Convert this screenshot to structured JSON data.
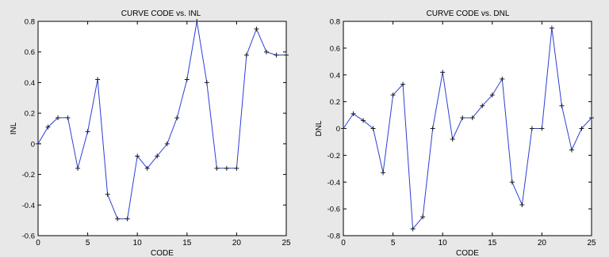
{
  "chart_data": [
    {
      "type": "line",
      "title": "CURVE CODE vs. INL",
      "xlabel": "CODE",
      "ylabel": "INL",
      "xlim": [
        0,
        25
      ],
      "ylim": [
        -0.6,
        0.8
      ],
      "xticks": [
        "0",
        "5",
        "10",
        "15",
        "20",
        "25"
      ],
      "yticks": [
        "-0.6",
        "-0.4",
        "-0.2",
        "0",
        "0.2",
        "0.4",
        "0.6",
        "0.8"
      ],
      "grid": false,
      "series": [
        {
          "color": "#2b3fd6",
          "marker": "plus",
          "x": [
            0,
            1,
            2,
            3,
            4,
            5,
            6,
            7,
            8,
            9,
            10,
            11,
            12,
            13,
            14,
            15,
            16,
            17,
            18,
            19,
            20,
            21,
            22,
            23,
            24,
            25
          ],
          "y": [
            0.0,
            0.11,
            0.17,
            0.17,
            -0.16,
            0.08,
            0.42,
            -0.33,
            -0.49,
            -0.49,
            -0.08,
            -0.16,
            -0.08,
            0.0,
            0.17,
            0.42,
            0.8,
            0.4,
            -0.16,
            -0.16,
            -0.16,
            0.58,
            0.75,
            0.6,
            0.58,
            0.58
          ]
        }
      ]
    },
    {
      "type": "line",
      "title": "CURVE CODE vs. DNL",
      "xlabel": "CODE",
      "ylabel": "DNL",
      "xlim": [
        0,
        25
      ],
      "ylim": [
        -0.8,
        0.8
      ],
      "xticks": [
        "0",
        "5",
        "10",
        "15",
        "20",
        "25"
      ],
      "yticks": [
        "-0.8",
        "-0.6",
        "-0.4",
        "-0.2",
        "0",
        "0.2",
        "0.4",
        "0.6",
        "0.8"
      ],
      "grid": false,
      "series": [
        {
          "color": "#2b3fd6",
          "marker": "plus",
          "x": [
            0,
            1,
            2,
            3,
            4,
            5,
            6,
            7,
            8,
            9,
            10,
            11,
            12,
            13,
            14,
            15,
            16,
            17,
            18,
            19,
            20,
            21,
            22,
            23,
            24,
            25
          ],
          "y": [
            0.0,
            0.11,
            0.06,
            0.0,
            -0.33,
            0.25,
            0.33,
            -0.75,
            -0.66,
            0.0,
            0.42,
            -0.08,
            0.08,
            0.08,
            0.17,
            0.25,
            0.37,
            -0.4,
            -0.57,
            0.0,
            0.0,
            0.75,
            0.17,
            -0.16,
            0.0,
            0.08
          ]
        }
      ]
    }
  ]
}
